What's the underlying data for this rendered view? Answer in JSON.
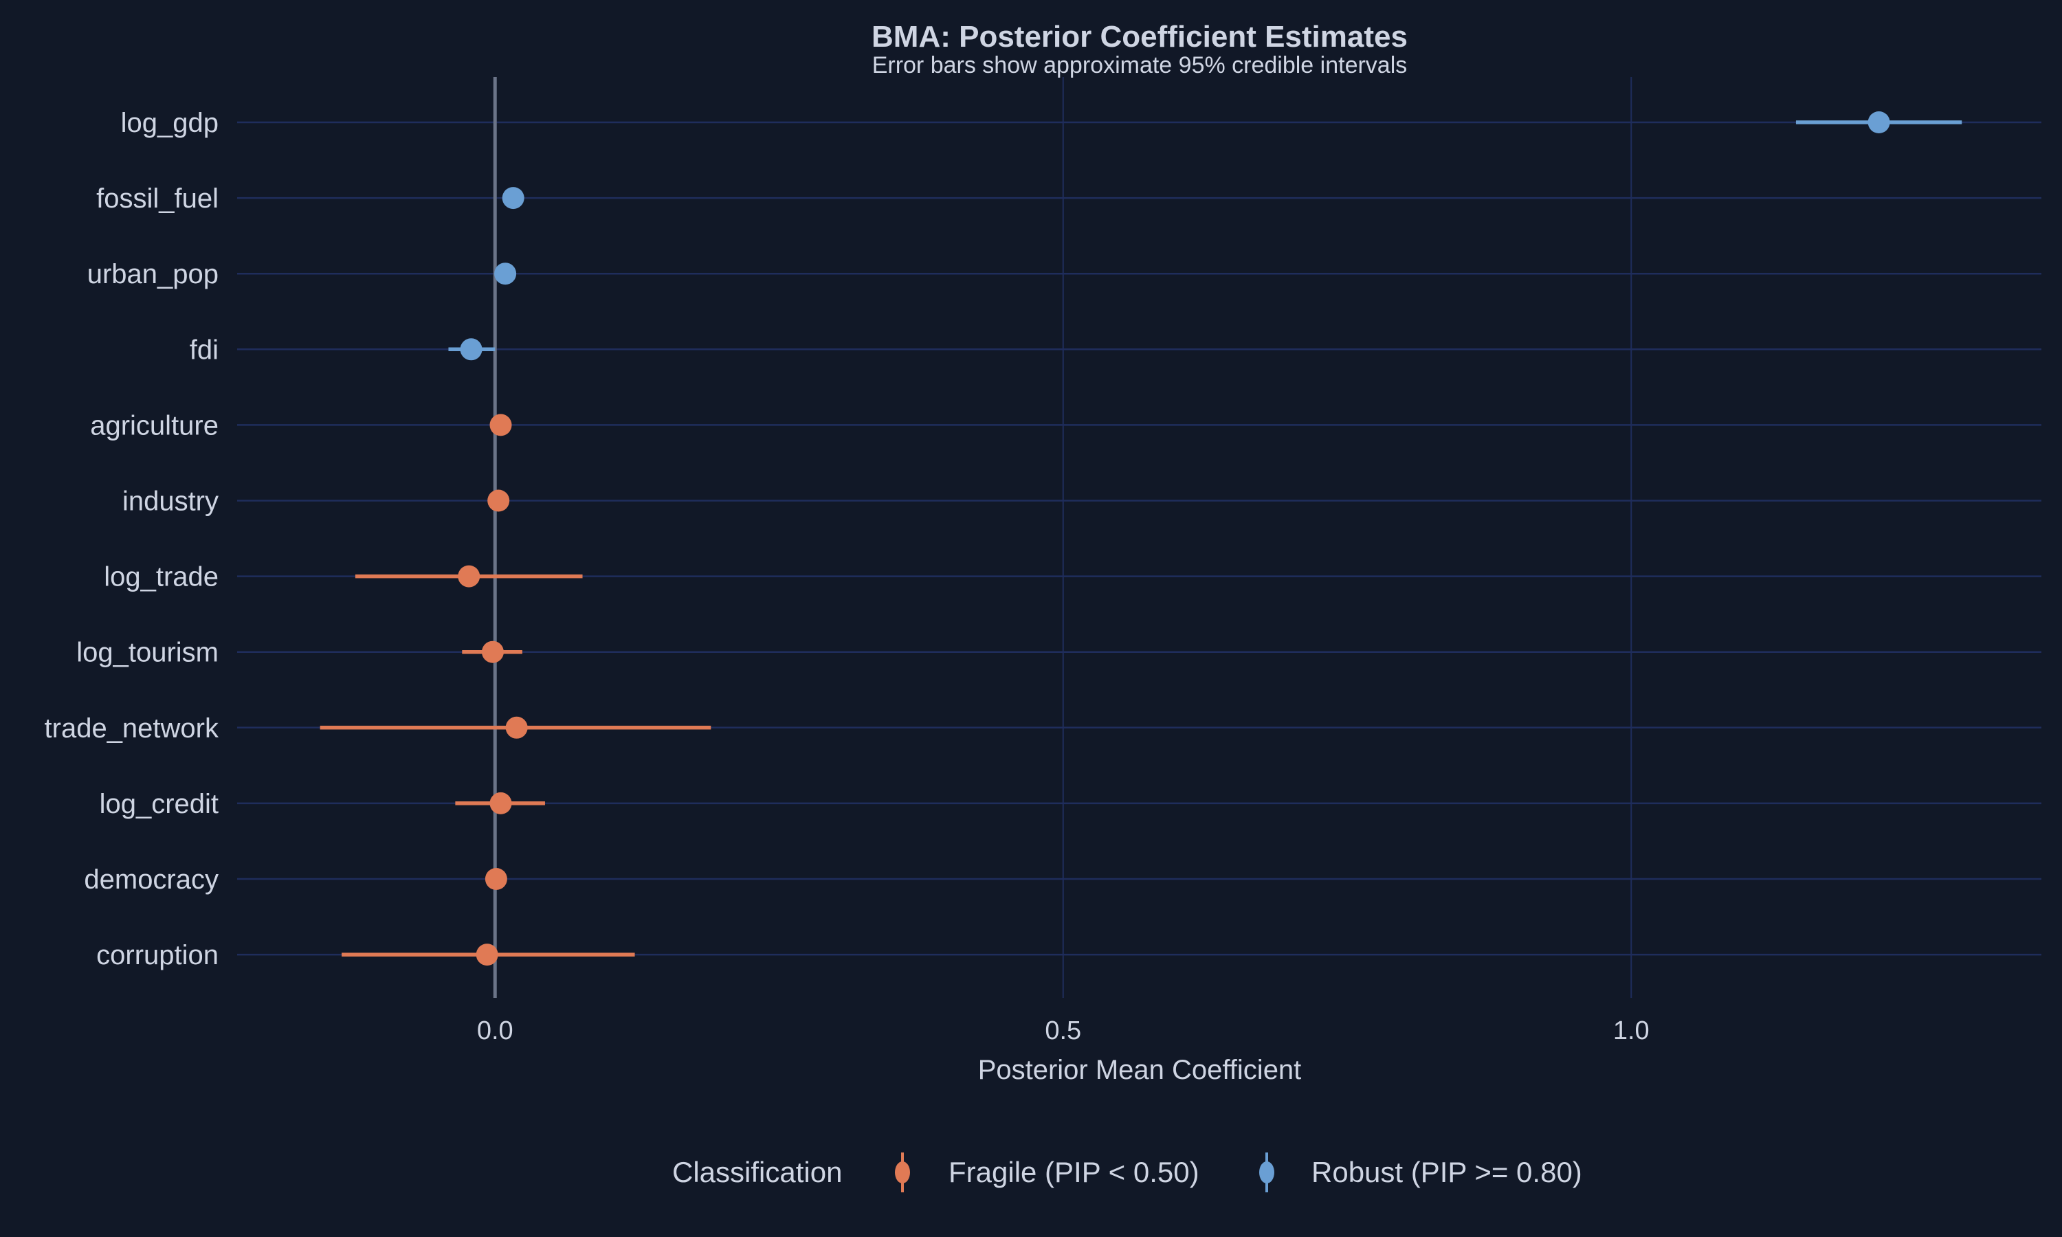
{
  "chart_data": {
    "type": "scatter",
    "subtype": "coefficient-plot-with-error-bars",
    "title": "BMA: Posterior Coefficient Estimates",
    "subtitle": "Error bars show approximate 95% credible intervals",
    "xlabel": "Posterior Mean Coefficient",
    "ylabel": "",
    "xlim": [
      -0.227,
      1.361
    ],
    "x_ticks": [
      0.0,
      0.5,
      1.0
    ],
    "x_tick_labels": [
      "0.0",
      "0.5",
      "1.0"
    ],
    "grid": true,
    "reference_line": 0,
    "legend": {
      "title": "Classification",
      "placement": "bottom",
      "entries": [
        {
          "key": "fragile",
          "label": "Fragile (PIP < 0.50)",
          "color": "#e07a55"
        },
        {
          "key": "robust",
          "label": "Robust (PIP >= 0.80)",
          "color": "#6a9fd4"
        }
      ]
    },
    "points": [
      {
        "variable": "log_gdp",
        "mean": 1.218,
        "lower": 1.145,
        "upper": 1.291,
        "class": "robust"
      },
      {
        "variable": "fossil_fuel",
        "mean": 0.016,
        "lower": 0.016,
        "upper": 0.016,
        "class": "robust"
      },
      {
        "variable": "urban_pop",
        "mean": 0.009,
        "lower": 0.009,
        "upper": 0.009,
        "class": "robust"
      },
      {
        "variable": "fdi",
        "mean": -0.021,
        "lower": -0.041,
        "upper": 0.0,
        "class": "robust"
      },
      {
        "variable": "agriculture",
        "mean": 0.005,
        "lower": 0.005,
        "upper": 0.005,
        "class": "fragile"
      },
      {
        "variable": "industry",
        "mean": 0.003,
        "lower": 0.003,
        "upper": 0.003,
        "class": "fragile"
      },
      {
        "variable": "log_trade",
        "mean": -0.023,
        "lower": -0.123,
        "upper": 0.077,
        "class": "fragile"
      },
      {
        "variable": "log_tourism",
        "mean": -0.002,
        "lower": -0.029,
        "upper": 0.024,
        "class": "fragile"
      },
      {
        "variable": "trade_network",
        "mean": 0.019,
        "lower": -0.154,
        "upper": 0.19,
        "class": "fragile"
      },
      {
        "variable": "log_credit",
        "mean": 0.005,
        "lower": -0.035,
        "upper": 0.044,
        "class": "fragile"
      },
      {
        "variable": "democracy",
        "mean": 0.001,
        "lower": 0.001,
        "upper": 0.001,
        "class": "fragile"
      },
      {
        "variable": "corruption",
        "mean": -0.007,
        "lower": -0.135,
        "upper": 0.123,
        "class": "fragile"
      }
    ],
    "colors": {
      "background": "#111827",
      "grid": "#1f2d5c",
      "zero_line": "#6b7488",
      "text": "#cfd5e3"
    }
  }
}
